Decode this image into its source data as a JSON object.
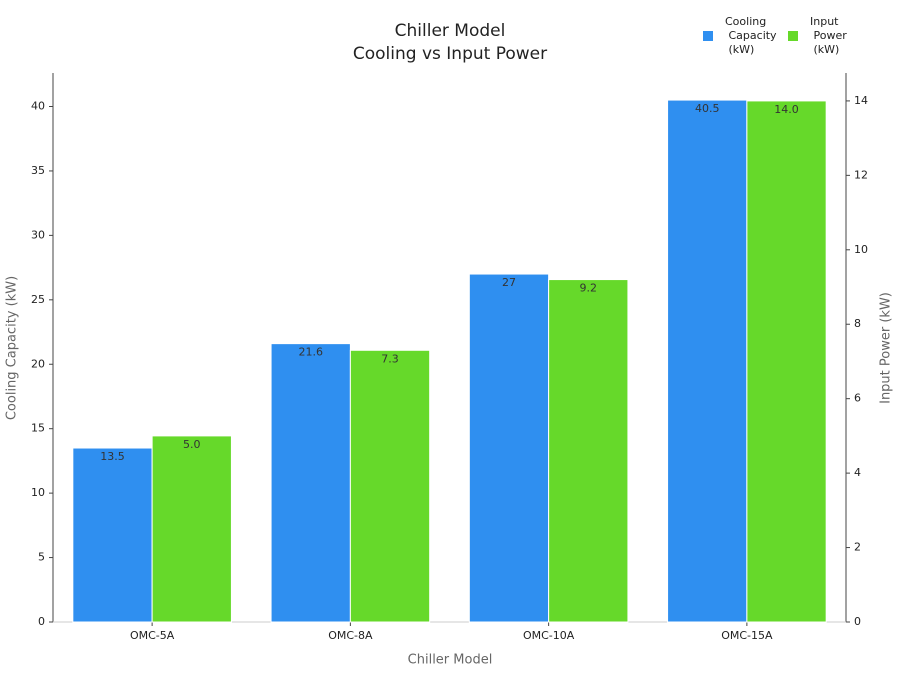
{
  "chart_data": {
    "type": "bar",
    "title": "Chiller Model",
    "subtitle": "Cooling vs Input Power",
    "x_label": "Chiller Model",
    "y_label": "Cooling Capacity (kW)",
    "y2_label": "Input Power (kW)",
    "categories": [
      "OMC-5A",
      "OMC-8A",
      "OMC-10A",
      "OMC-15A"
    ],
    "series": [
      {
        "name": "Cooling Capacity (kW)",
        "color": "#2f8ff0",
        "values": [
          13.5,
          21.6,
          27,
          40.5
        ]
      },
      {
        "name": "Input Power (kW)",
        "color": "#66d92a",
        "axis": "y2",
        "values": [
          5.0,
          7.3,
          9.2,
          14.0
        ],
        "value_labels": [
          "5.0",
          "7.3",
          "9.2",
          "14.0"
        ]
      }
    ],
    "ylim": [
      0,
      42.6
    ],
    "yticks": [
      0,
      5,
      10,
      15,
      20,
      25,
      30,
      35,
      40
    ],
    "y2lim": [
      0,
      14.75
    ],
    "y2ticks": [
      0,
      2,
      4,
      6,
      8,
      10,
      12,
      14
    ],
    "legend": "upper right",
    "grid": false
  }
}
